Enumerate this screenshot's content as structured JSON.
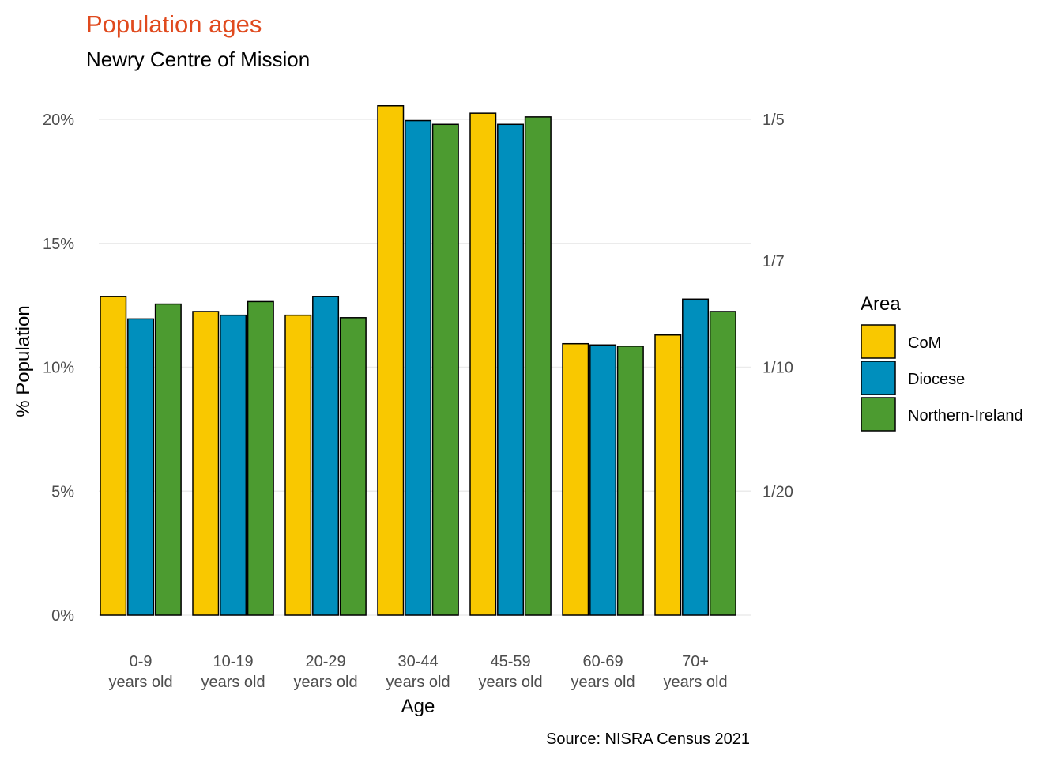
{
  "chart_data": {
    "type": "bar",
    "title": "Population ages",
    "subtitle": "Newry Centre of Mission",
    "xlabel": "Age",
    "ylabel": "% Population",
    "caption": "Source: NISRA Census 2021",
    "categories": [
      [
        "0-9",
        "years old"
      ],
      [
        "10-19",
        "years old"
      ],
      [
        "20-29",
        "years old"
      ],
      [
        "30-44",
        "years old"
      ],
      [
        "45-59",
        "years old"
      ],
      [
        "60-69",
        "years old"
      ],
      [
        "70+",
        "years old"
      ]
    ],
    "series": [
      {
        "name": "CoM",
        "color": "#f9c800",
        "values": [
          12.85,
          12.25,
          12.1,
          20.55,
          20.25,
          10.95,
          11.3
        ]
      },
      {
        "name": "Diocese",
        "color": "#008fbd",
        "values": [
          11.95,
          12.1,
          12.85,
          19.95,
          19.8,
          10.9,
          12.75
        ]
      },
      {
        "name": "Northern-Ireland",
        "color": "#4c9b30",
        "values": [
          12.55,
          12.65,
          12.0,
          19.8,
          20.1,
          10.85,
          12.25
        ]
      }
    ],
    "ylim": [
      0,
      21
    ],
    "yticks": [
      0,
      5,
      10,
      15,
      20
    ],
    "ytick_labels": [
      "0%",
      "5%",
      "10%",
      "15%",
      "20%"
    ],
    "secondary_axis": {
      "ticks": [
        20,
        14.2857,
        10,
        5
      ],
      "tick_labels": [
        "1/5",
        "1/7",
        "1/10",
        "1/20"
      ]
    },
    "legend": {
      "title": "Area",
      "position": "right"
    },
    "grid": "horizontal",
    "title_color": "#e04a1e",
    "bar_outline_color": "#000000",
    "grid_color": "#ebebeb"
  }
}
